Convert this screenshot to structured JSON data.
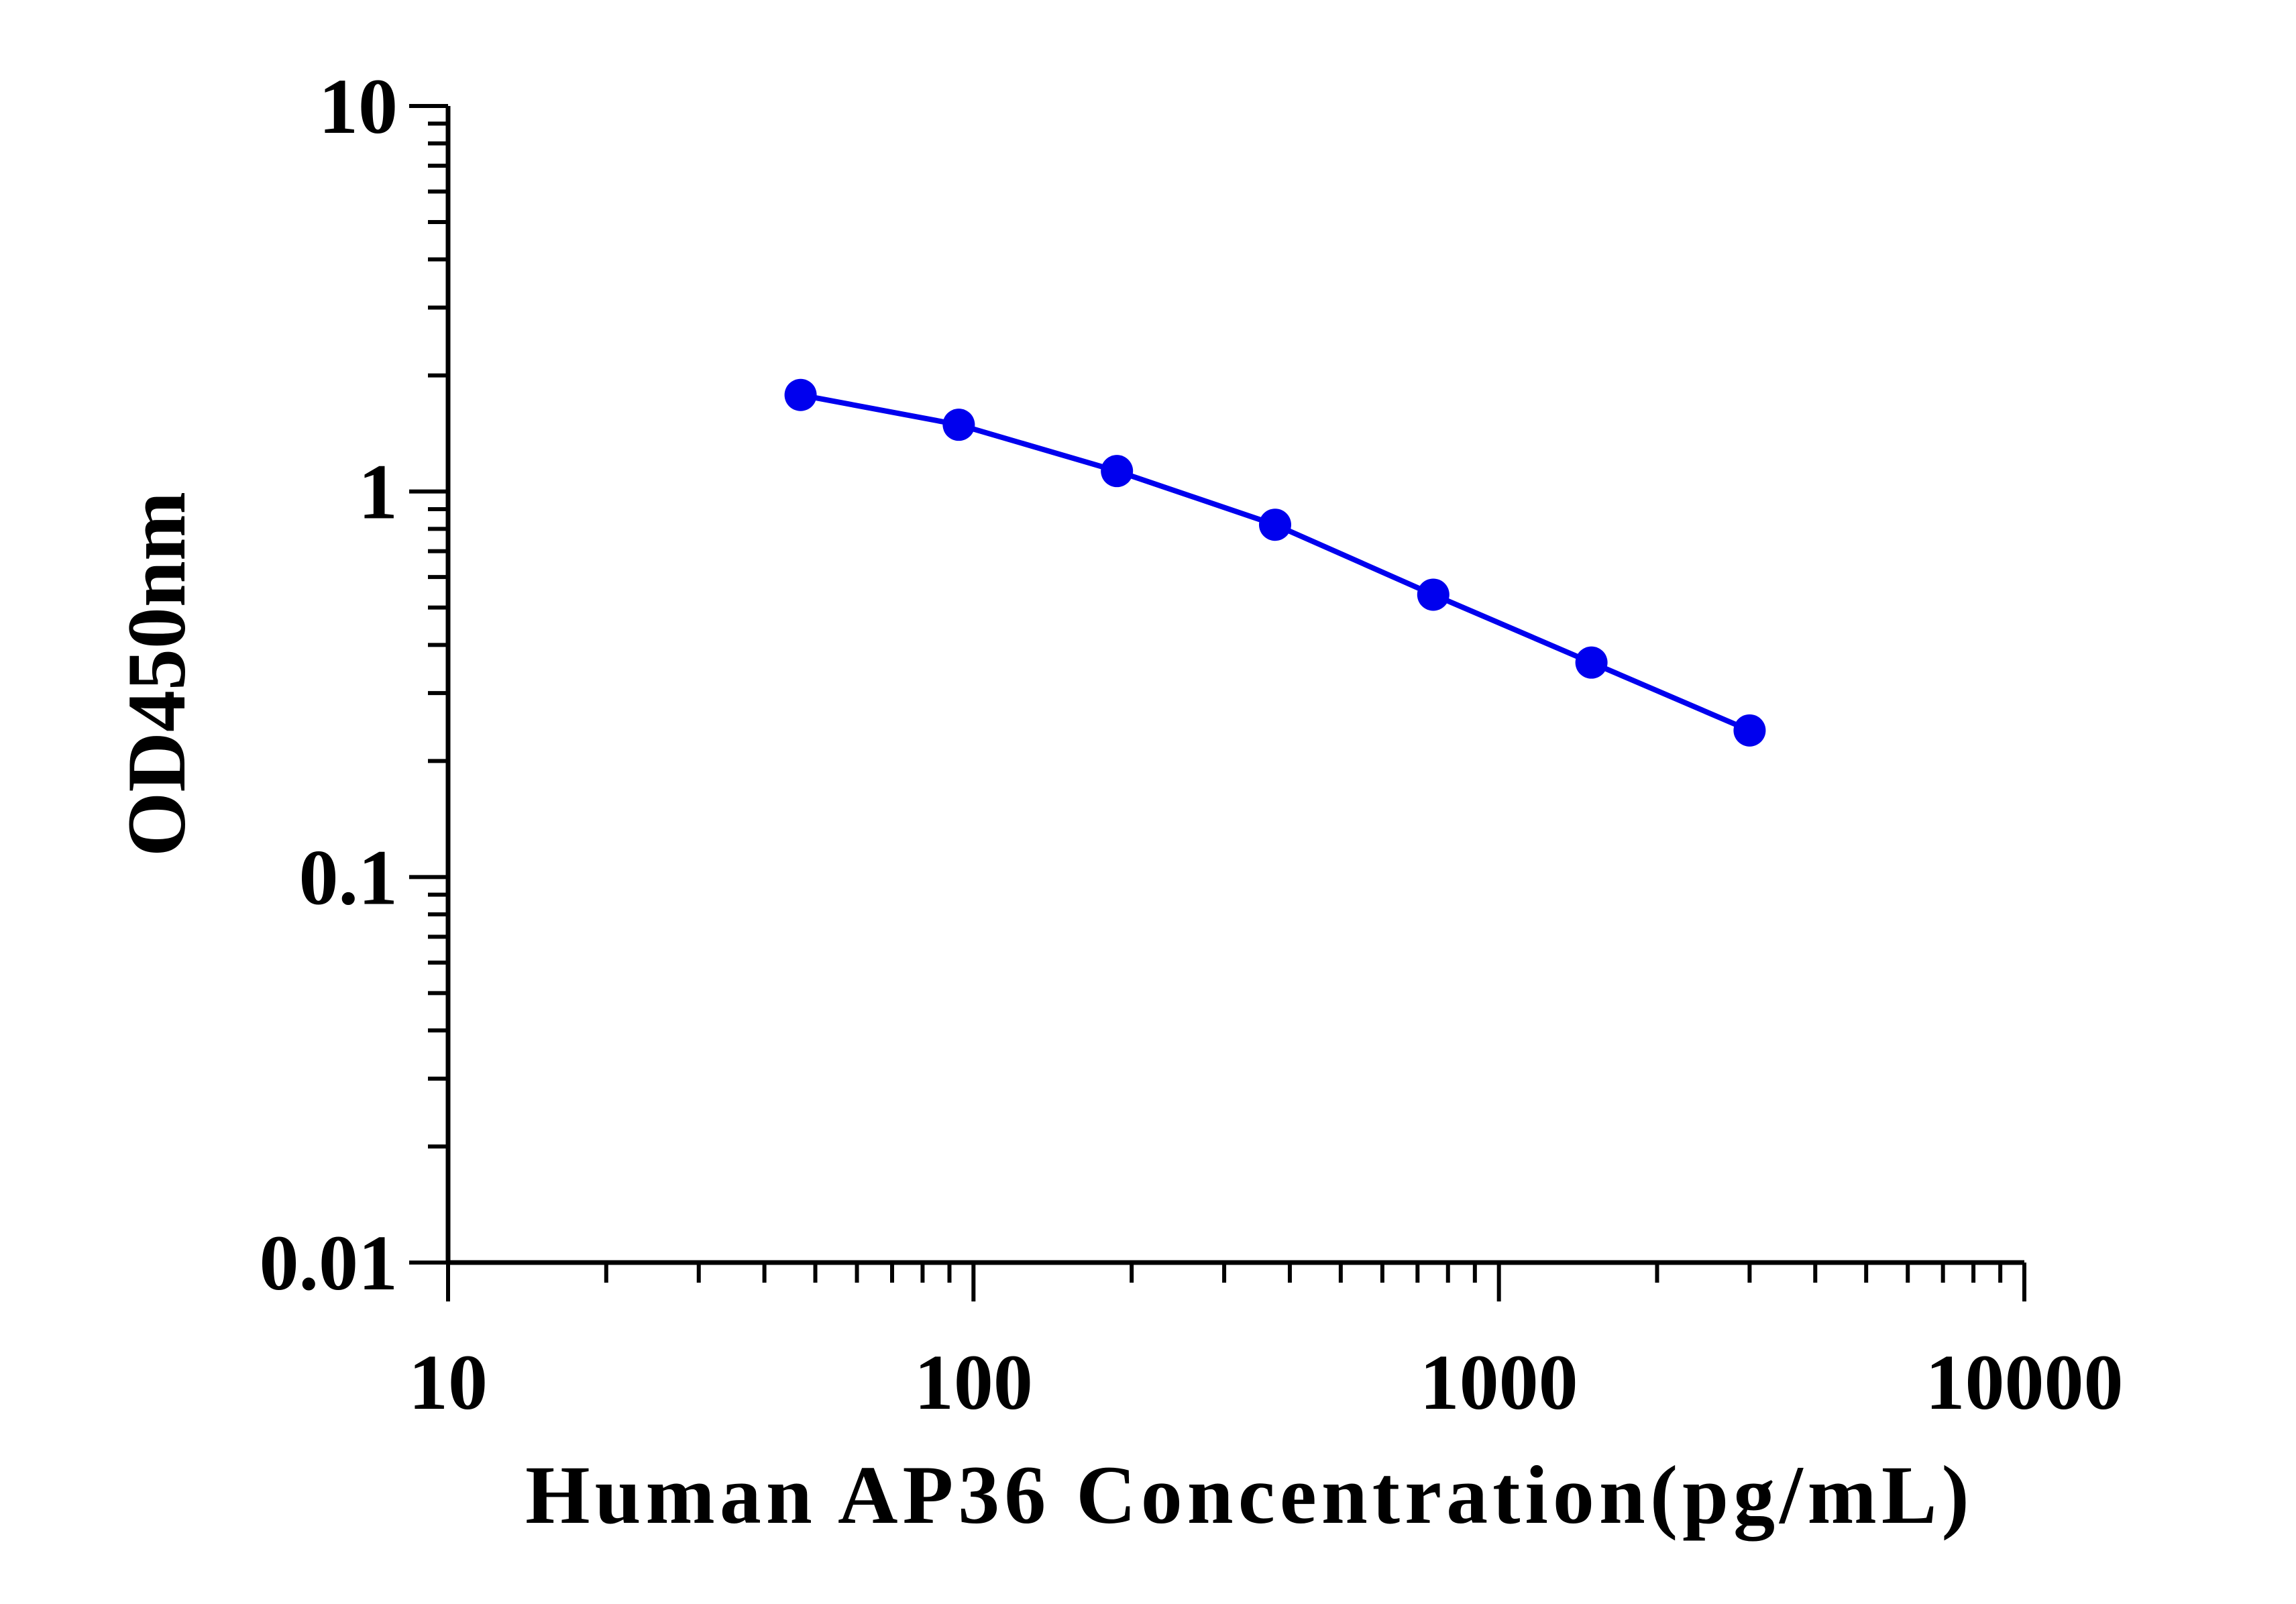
{
  "chart_data": {
    "type": "line",
    "title": "",
    "xlabel": "Human AP36 Concentration(pg/mL)",
    "ylabel": "OD450nm",
    "x_scale": "log",
    "y_scale": "log",
    "xlim": [
      10,
      10000
    ],
    "ylim": [
      0.01,
      10
    ],
    "x_ticks": [
      {
        "value": 10,
        "label": "10"
      },
      {
        "value": 100,
        "label": "100"
      },
      {
        "value": 1000,
        "label": "1000"
      },
      {
        "value": 10000,
        "label": "10000"
      }
    ],
    "y_ticks": [
      {
        "value": 0.01,
        "label": "0.01"
      },
      {
        "value": 0.1,
        "label": "0.1"
      },
      {
        "value": 1,
        "label": "1"
      },
      {
        "value": 10,
        "label": "10"
      }
    ],
    "grid": false,
    "legend": "none",
    "series": [
      {
        "color": "#0000ee",
        "marker": "circle",
        "x": [
          46.875,
          93.75,
          187.5,
          375,
          750,
          1500,
          3000
        ],
        "y": [
          1.78,
          1.49,
          1.13,
          0.82,
          0.54,
          0.36,
          0.24
        ]
      }
    ]
  }
}
